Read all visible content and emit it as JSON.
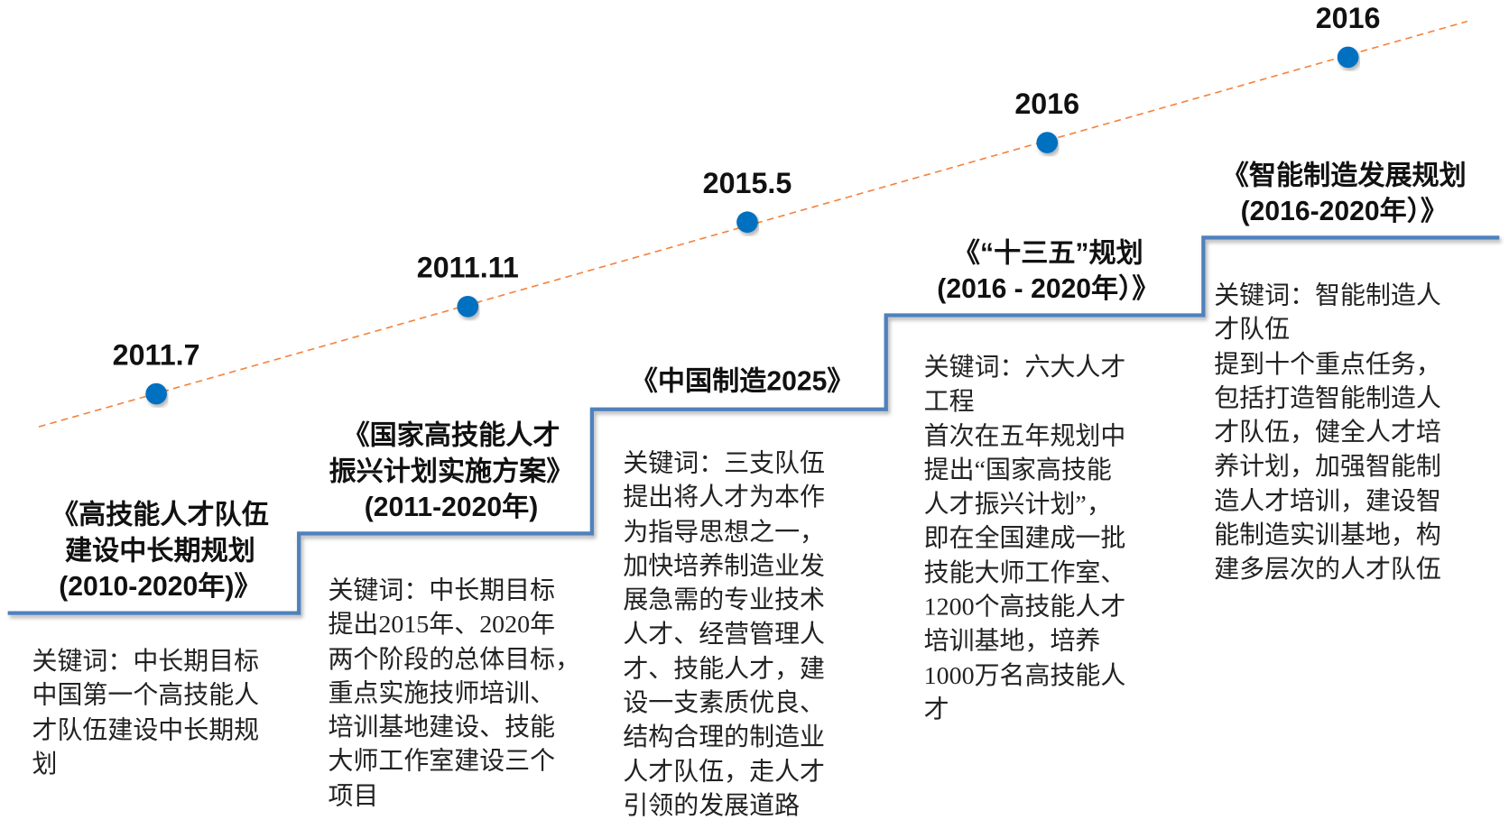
{
  "colors": {
    "step_line": "#4F81BD",
    "trend_line": "#F4823C",
    "milestone_dot": "#0070C0"
  },
  "milestones": [
    {
      "year": "2011.7",
      "title": [
        "《高技能人才队伍",
        "建设中长期规划",
        "(2010-2020年)》"
      ],
      "body": [
        "关键词：中长期目标",
        "中国第一个高技能人",
        "才队伍建设中长期规",
        "划"
      ]
    },
    {
      "year": "2011.11",
      "title": [
        "《国家高技能人才",
        "振兴计划实施方案》",
        "(2011-2020年)"
      ],
      "body": [
        "关键词：中长期目标",
        "提出2015年、2020年",
        "两个阶段的总体目标，",
        "重点实施技师培训、",
        "培训基地建设、技能",
        "大师工作室建设三个",
        "项目"
      ]
    },
    {
      "year": "2015.5",
      "title": [
        "《中国制造2025》"
      ],
      "body": [
        "关键词：三支队伍",
        "提出将人才为本作",
        "为指导思想之一，",
        "加快培养制造业发",
        "展急需的专业技术",
        "人才、经营管理人",
        "才、技能人才，建",
        "设一支素质优良、",
        "结构合理的制造业",
        "人才队伍，走人才",
        "引领的发展道路"
      ]
    },
    {
      "year": "2016",
      "title": [
        "《“十三五”规划",
        "(2016 - 2020年）》"
      ],
      "body": [
        "关键词：六大人才",
        "工程",
        "首次在五年规划中",
        "提出“国家高技能",
        "人才振兴计划”，",
        "即在全国建成一批",
        "技能大师工作室、",
        "1200个高技能人才",
        "培训基地，培养",
        "1000万名高技能人",
        "才"
      ]
    },
    {
      "year": "2016",
      "title": [
        "《智能制造发展规划",
        "(2016-2020年）》"
      ],
      "body": [
        "关键词：智能制造人",
        "才队伍",
        "提到十个重点任务，",
        "包括打造智能制造人",
        "才队伍，健全人才培",
        "养计划，加强智能制",
        "造人才培训，建设智",
        "能制造实训基地，构",
        "建多层次的人才队伍"
      ]
    }
  ]
}
